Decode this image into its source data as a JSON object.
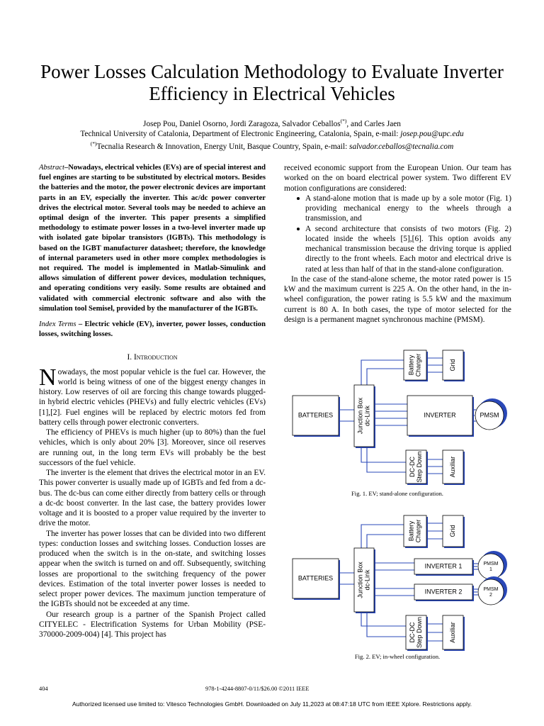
{
  "title": "Power Losses Calculation Methodology to Evaluate Inverter Efficiency in Electrical Vehicles",
  "authors": {
    "names": "Josep Pou, Daniel Osorno, Jordi Zaragoza, Salvador Ceballos",
    "mark": "(*)",
    "last": ", and Carles Jaen"
  },
  "affiliations": [
    {
      "text": "Technical University of Catalonia, Department of Electronic Engineering, Catalonia, Spain, e-mail:",
      "email": "josep.pou@upc.edu"
    },
    {
      "mark": "(*)",
      "text": "Tecnalia Research & Innovation, Energy Unit, Basque Country, Spain, e-mail:",
      "email": "salvador.ceballos@tecnalia.com"
    }
  ],
  "abstract": {
    "label": "Abstract",
    "text": "–Nowadays, electrical vehicles (EVs) are of special interest and fuel engines are starting to be substituted by electrical motors. Besides the batteries and the motor, the power electronic devices are important parts in an EV, especially the inverter. This ac/dc power converter drives the electrical motor. Several tools may be needed to achieve an optimal design of the inverter. This paper presents a simplified methodology to estimate power losses in a two-level inverter made up with isolated gate bipolar transistors (IGBTs). This methodology is based on the IGBT manufacturer datasheet; therefore, the knowledge of internal parameters used in other more complex methodologies is not required. The model is implemented in Matlab-Simulink and allows simulation of different power devices, modulation techniques, and operating conditions very easily. Some results are obtained and validated with commercial electronic software and also with the simulation tool Semisel, provided by the manufacturer of the IGBTs."
  },
  "index_terms": {
    "label": "Index Terms",
    "text": "– Electric vehicle (EV), inverter, power losses, conduction losses, switching losses."
  },
  "introduction": {
    "heading": "I. Introduction",
    "dropcap": "N",
    "paragraphs": [
      "owadays, the most popular vehicle is the fuel car. However, the world is being witness of one of the biggest energy changes in history.  Low reserves of oil are forcing this change towards plugged-in hybrid electric vehicles (PHEVs) and fully electric vehicles (EVs)[1],[2]. Fuel engines will be replaced by electric motors fed from battery cells through power electronic converters.",
      "The efficiency of PHEVs is much higher (up to 80%) than the fuel vehicles, which is only about 20% [3]. Moreover, since oil reserves are running out, in the long term EVs will probably be the best successors of the fuel vehicle.",
      "The inverter is the element that drives the electrical motor in an EV. This power converter is usually made up of IGBTs and fed from a dc-bus. The dc-bus can come either directly from battery cells or through a dc-dc boost converter. In the last case, the battery provides lower voltage and it is boosted to a proper value required by the inverter to drive the motor.",
      "The inverter has power losses that can be divided into two different types: conduction losses and switching losses. Conduction losses are produced when the switch is in the on-state, and switching losses appear when the switch is turned on and off. Subsequently, switching losses are proportional to the switching frequency of the power devices. Estimation of the total inverter power losses is needed to select proper power devices. The maximum junction temperature of the IGBTs should not be exceeded at any time.",
      "Our research group is a partner of the Spanish Project called CITYELEC - Electrification Systems for Urban Mobility (PSE-370000-2009-004) [4].  This project has"
    ],
    "continuation": "received economic support from the European Union. Our team has worked on the on board electrical power system. Two different EV motion configurations are considered:",
    "bullets": [
      "A stand-alone motion that is made up by a sole motor (Fig. 1) providing mechanical energy to the wheels through a transmission, and",
      "A second architecture that consists of two motors (Fig. 2) located inside the wheels [5],[6]. This option avoids any mechanical transmission because the driving torque is applied directly to the front wheels. Each motor and electrical drive is rated at less than half of that in the stand-alone configuration."
    ],
    "closing": "In the case of the stand-alone scheme, the motor rated power is 15 kW and the maximum current is 225 A. On the other hand, in the in-wheel configuration, the power rating is 5.5 kW and the maximum current is 80 A. In both cases, the type of motor selected for the design is a permanent magnet synchronous machine (PMSM)."
  },
  "figure_1": {
    "labels": {
      "charger": [
        "Battery",
        "Charger"
      ],
      "grid": [
        "Grid"
      ],
      "batteries": [
        "BATTERIES"
      ],
      "junction": [
        "Junction Box",
        "dc-Link"
      ],
      "inverter": [
        "INVERTER"
      ],
      "pmsm": [
        "PMSM"
      ],
      "dcdc": [
        "DC-DC",
        "Step Down"
      ],
      "auxiliar": [
        "Auxiliar"
      ]
    },
    "caption": "Fig. 1. EV; stand-alone configuration."
  },
  "figure_2": {
    "labels": {
      "charger": [
        "Battery",
        "Charger"
      ],
      "grid": [
        "Grid"
      ],
      "batteries": [
        "BATTERIES"
      ],
      "junction": [
        "Junction Box",
        "dc-Link"
      ],
      "inverter_1": [
        "INVERTER 1"
      ],
      "inverter_2": [
        "INVERTER 2"
      ],
      "pmsm_1": [
        "PMSM",
        "1"
      ],
      "pmsm_2": [
        "PMSM",
        "2"
      ],
      "dcdc": [
        "DC-DC",
        "Step Down"
      ],
      "auxiliar": [
        "Auxiliar"
      ]
    },
    "caption": "Fig. 2. EV; in-wheel configuration."
  },
  "footer": {
    "page": "404",
    "isbn": "978-1-4244-8807-0/11/$26.00 ©2011 IEEE",
    "notice": "Authorized licensed use limited to: Vitesco Technologies GmbH. Downloaded on July 11,2023 at 08:47:18 UTC from IEEE Xplore.  Restrictions apply."
  }
}
